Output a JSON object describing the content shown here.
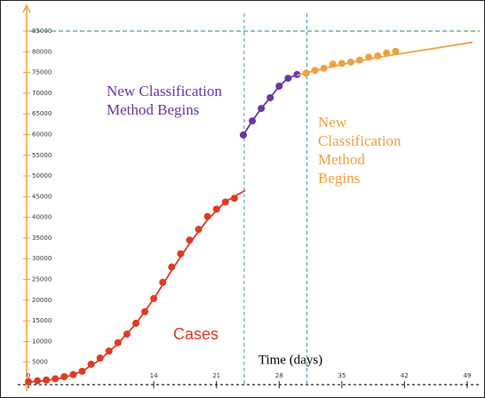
{
  "chart_data": {
    "type": "scatter",
    "x_label": "Time (days)",
    "xlim": [
      0,
      49.6
    ],
    "ylim": [
      0,
      88000
    ],
    "xticks": [
      0,
      14,
      21,
      28,
      35,
      42,
      49
    ],
    "yticks": [
      5000,
      10000,
      15000,
      20000,
      25000,
      30000,
      35000,
      40000,
      45000,
      50000,
      55000,
      60000,
      65000,
      70000,
      75000,
      80000,
      85000
    ],
    "reference_lines": {
      "x": [
        24.1,
        31.1
      ],
      "x_color": "#4a9aa0",
      "y": 85000,
      "y_color": "#2e8b3e"
    },
    "series": [
      {
        "name": "Cases",
        "color": "#e03a22",
        "x": [
          0,
          1,
          2,
          3,
          4,
          5,
          6,
          7,
          8,
          9,
          10,
          11,
          12,
          13,
          14,
          15,
          16,
          17,
          18,
          19,
          20,
          21,
          22,
          23
        ],
        "values": [
          300,
          500,
          700,
          1000,
          1500,
          2000,
          2800,
          4500,
          6000,
          7700,
          9700,
          11800,
          14400,
          17200,
          20400,
          24300,
          28000,
          31200,
          34500,
          37100,
          40200,
          42000,
          43700,
          44600
        ],
        "curve_x": [
          0,
          2,
          4,
          6,
          8,
          10,
          12,
          14,
          16,
          18,
          20,
          22,
          24.2
        ],
        "curve_values": [
          200,
          600,
          1300,
          2800,
          5600,
          9500,
          14300,
          20300,
          27200,
          33700,
          39400,
          43800,
          46500
        ]
      },
      {
        "name": "New Classification Method Begins",
        "color": "#6a35a8",
        "x": [
          24,
          25,
          26,
          27,
          28,
          29,
          30
        ],
        "values": [
          59900,
          63300,
          66300,
          68900,
          71700,
          73600,
          74500
        ],
        "curve_x": [
          24,
          25,
          26,
          27,
          28,
          29,
          30
        ],
        "curve_values": [
          59900,
          63300,
          66300,
          68900,
          71700,
          73600,
          74500
        ]
      },
      {
        "name": "New Classification Method Begins",
        "color": "#f0a040",
        "x": [
          31,
          32,
          33,
          34,
          35,
          36,
          37,
          38,
          39,
          40,
          41
        ],
        "values": [
          74800,
          75500,
          76000,
          77000,
          77200,
          77500,
          78000,
          78700,
          79000,
          79700,
          80100
        ],
        "curve_x": [
          30,
          33,
          36,
          39,
          42,
          45,
          49.6
        ],
        "curve_values": [
          74300,
          76000,
          77400,
          78600,
          79700,
          80700,
          82300
        ]
      }
    ]
  }
}
